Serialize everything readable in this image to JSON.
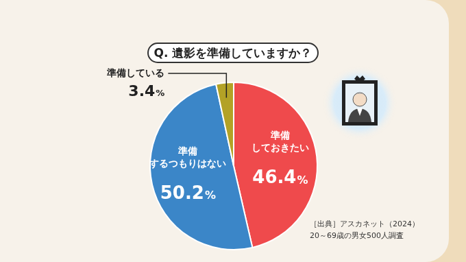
{
  "chart_data": {
    "type": "pie",
    "title": "Q. 遺影を準備していますか？",
    "categories": [
      "準備\nしておきたい",
      "準備\nするつもりはない",
      "準備している"
    ],
    "values": [
      46.4,
      50.2,
      3.4
    ],
    "value_labels": [
      "46.4%",
      "50.2%",
      "3.4%"
    ],
    "colors": [
      "#ef4a4c",
      "#3b86c8",
      "#b3a226"
    ],
    "data_labels": true,
    "annotations": [
      "［出典］アスカネット（2024）",
      "20～69歳の男女500人調査"
    ]
  }
}
